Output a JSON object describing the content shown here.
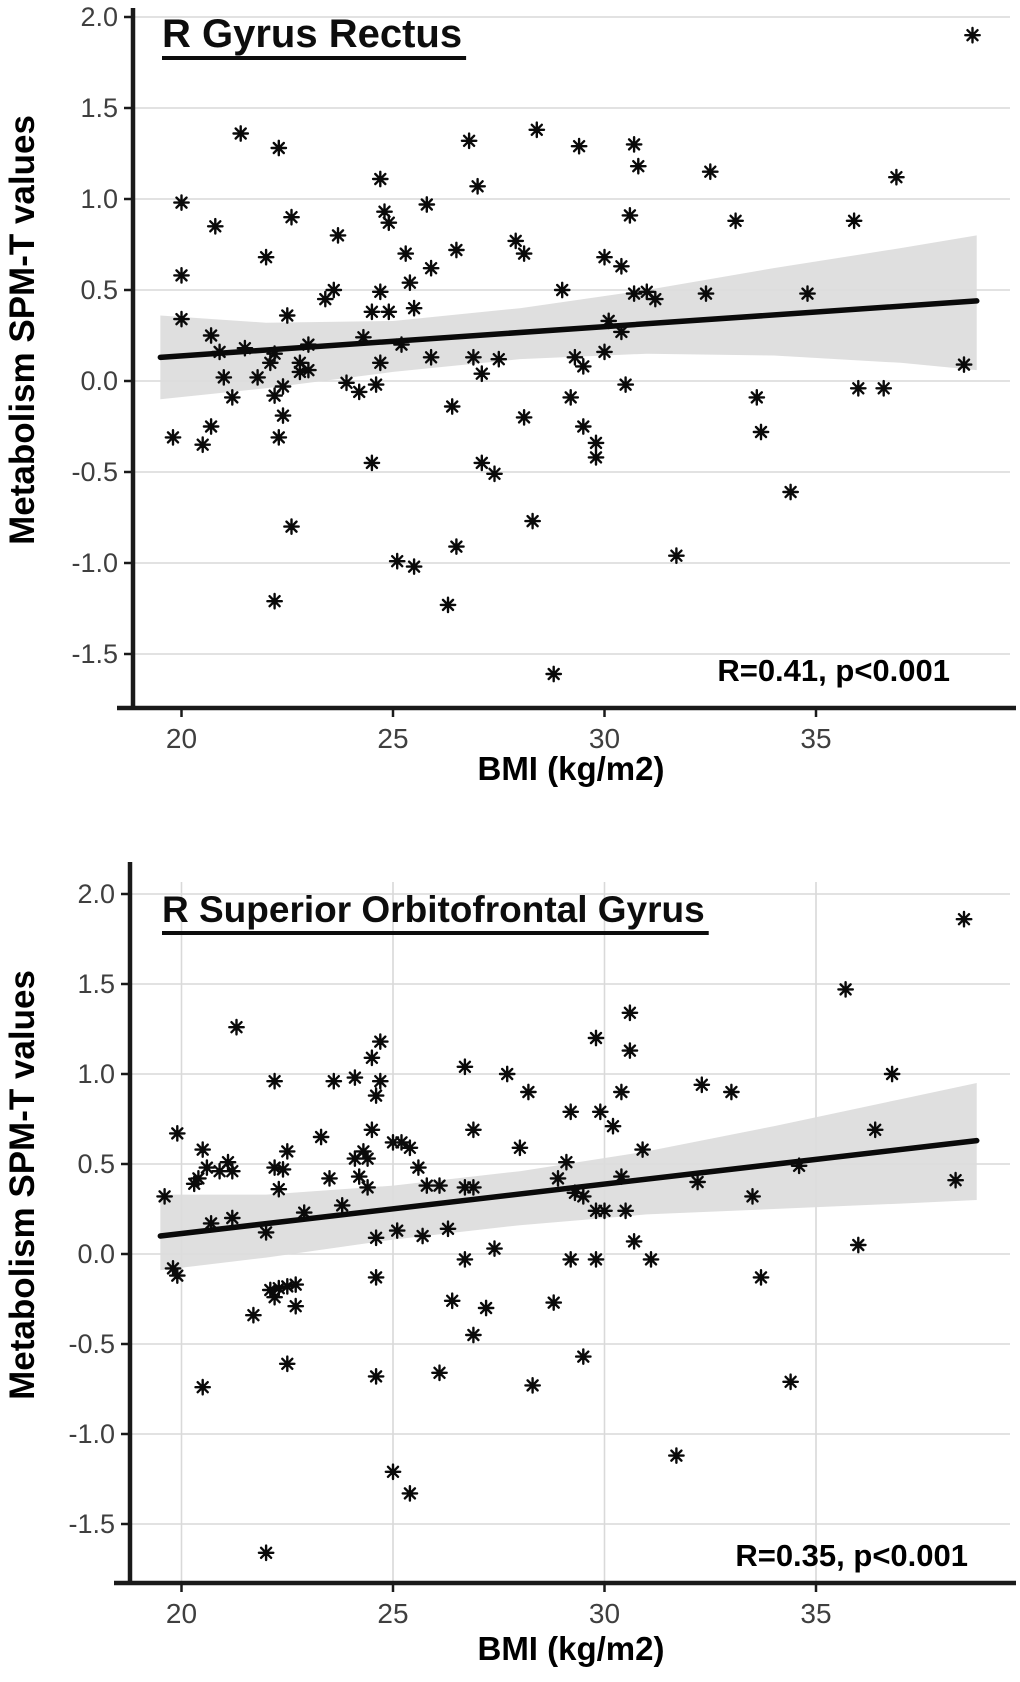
{
  "page": {
    "background": "#ffffff"
  },
  "colors": {
    "point": "#0a0a0a",
    "regression_line": "#0a0a0a",
    "ci_band": "#dcdcdc",
    "grid": "#d9d9d9",
    "axis": "#1a1a1a",
    "tick_label": "#3f3f3f",
    "text": "#000000"
  },
  "chart_data": [
    {
      "type": "scatter",
      "title": "R Gyrus Rectus",
      "annotation": "R=0.41, p<0.001",
      "xlabel": "BMI (kg/m2)",
      "ylabel": "Metabolism SPM-T values",
      "x_ticks": [
        20,
        25,
        30,
        35
      ],
      "y_ticks": [
        2.0,
        1.5,
        1.0,
        0.5,
        0.0,
        -0.5,
        -1.0,
        -1.5
      ],
      "y_tick_labels": [
        "2.0",
        "1.5",
        "1.0",
        "0.5",
        "0.0",
        "-0.5",
        "-1.0",
        "-1.5"
      ],
      "xlim": [
        18.8,
        39.6
      ],
      "ylim": [
        -1.8,
        2.05
      ],
      "grid_vertical": false,
      "legend": "none",
      "marker": "asterisk",
      "regression": {
        "x": [
          19.5,
          38.8
        ],
        "y": [
          0.13,
          0.44
        ]
      },
      "ci_band": {
        "upper": [
          [
            19.5,
            0.36
          ],
          [
            22,
            0.32
          ],
          [
            25,
            0.33
          ],
          [
            28,
            0.4
          ],
          [
            31,
            0.5
          ],
          [
            34,
            0.62
          ],
          [
            37,
            0.73
          ],
          [
            38.8,
            0.8
          ]
        ],
        "lower": [
          [
            19.5,
            -0.1
          ],
          [
            22,
            -0.04
          ],
          [
            25,
            0.05
          ],
          [
            28,
            0.12
          ],
          [
            31,
            0.15
          ],
          [
            34,
            0.14
          ],
          [
            37,
            0.1
          ],
          [
            38.8,
            0.06
          ]
        ]
      },
      "points": [
        [
          20.0,
          0.98
        ],
        [
          21.4,
          1.36
        ],
        [
          22.3,
          1.28
        ],
        [
          20.8,
          0.85
        ],
        [
          22.6,
          0.9
        ],
        [
          22.0,
          0.68
        ],
        [
          20.0,
          0.58
        ],
        [
          23.7,
          0.8
        ],
        [
          24.7,
          1.11
        ],
        [
          24.8,
          0.93
        ],
        [
          24.9,
          0.87
        ],
        [
          25.8,
          0.97
        ],
        [
          26.8,
          1.32
        ],
        [
          27.0,
          1.07
        ],
        [
          25.3,
          0.7
        ],
        [
          25.9,
          0.62
        ],
        [
          26.5,
          0.72
        ],
        [
          25.4,
          0.54
        ],
        [
          23.6,
          0.5
        ],
        [
          23.4,
          0.45
        ],
        [
          24.7,
          0.49
        ],
        [
          24.5,
          0.38
        ],
        [
          24.9,
          0.38
        ],
        [
          25.5,
          0.4
        ],
        [
          20.0,
          0.34
        ],
        [
          22.5,
          0.36
        ],
        [
          20.7,
          0.25
        ],
        [
          20.9,
          0.16
        ],
        [
          21.5,
          0.18
        ],
        [
          22.2,
          0.15
        ],
        [
          23.0,
          0.2
        ],
        [
          24.3,
          0.24
        ],
        [
          25.2,
          0.2
        ],
        [
          22.1,
          0.1
        ],
        [
          22.8,
          0.1
        ],
        [
          22.8,
          0.05
        ],
        [
          23.0,
          0.06
        ],
        [
          24.7,
          0.1
        ],
        [
          25.9,
          0.13
        ],
        [
          26.9,
          0.13
        ],
        [
          27.5,
          0.12
        ],
        [
          27.1,
          0.04
        ],
        [
          21.0,
          0.02
        ],
        [
          21.8,
          0.02
        ],
        [
          22.4,
          -0.03
        ],
        [
          23.9,
          -0.01
        ],
        [
          24.6,
          -0.02
        ],
        [
          24.2,
          -0.06
        ],
        [
          21.2,
          -0.09
        ],
        [
          22.2,
          -0.08
        ],
        [
          22.4,
          -0.19
        ],
        [
          20.7,
          -0.25
        ],
        [
          19.8,
          -0.31
        ],
        [
          20.5,
          -0.35
        ],
        [
          22.3,
          -0.31
        ],
        [
          26.4,
          -0.14
        ],
        [
          24.5,
          -0.45
        ],
        [
          27.1,
          -0.45
        ],
        [
          27.4,
          -0.51
        ],
        [
          22.6,
          -0.8
        ],
        [
          26.5,
          -0.91
        ],
        [
          25.1,
          -0.99
        ],
        [
          25.5,
          -1.02
        ],
        [
          22.2,
          -1.21
        ],
        [
          26.3,
          -1.23
        ],
        [
          38.7,
          1.9
        ],
        [
          28.4,
          1.38
        ],
        [
          29.4,
          1.29
        ],
        [
          30.7,
          1.3
        ],
        [
          30.8,
          1.18
        ],
        [
          32.5,
          1.15
        ],
        [
          36.9,
          1.12
        ],
        [
          30.6,
          0.91
        ],
        [
          33.1,
          0.88
        ],
        [
          35.9,
          0.88
        ],
        [
          27.9,
          0.77
        ],
        [
          28.1,
          0.7
        ],
        [
          30.0,
          0.68
        ],
        [
          30.4,
          0.63
        ],
        [
          29.0,
          0.5
        ],
        [
          30.7,
          0.48
        ],
        [
          31.0,
          0.49
        ],
        [
          31.2,
          0.45
        ],
        [
          32.4,
          0.48
        ],
        [
          34.8,
          0.48
        ],
        [
          30.1,
          0.33
        ],
        [
          30.4,
          0.27
        ],
        [
          29.3,
          0.13
        ],
        [
          29.5,
          0.08
        ],
        [
          30.0,
          0.16
        ],
        [
          38.5,
          0.09
        ],
        [
          30.5,
          -0.02
        ],
        [
          36.0,
          -0.04
        ],
        [
          36.6,
          -0.04
        ],
        [
          29.2,
          -0.09
        ],
        [
          33.6,
          -0.09
        ],
        [
          28.1,
          -0.2
        ],
        [
          29.5,
          -0.25
        ],
        [
          29.8,
          -0.34
        ],
        [
          29.8,
          -0.42
        ],
        [
          33.7,
          -0.28
        ],
        [
          34.4,
          -0.61
        ],
        [
          28.3,
          -0.77
        ],
        [
          31.7,
          -0.96
        ],
        [
          28.8,
          -1.61
        ]
      ]
    },
    {
      "type": "scatter",
      "title": "R Superior Orbitofrontal Gyrus",
      "annotation": "R=0.35, p<0.001",
      "xlabel": "BMI (kg/m2)",
      "ylabel": "Metabolism SPM-T values",
      "x_ticks": [
        20,
        25,
        30,
        35
      ],
      "y_ticks": [
        2.0,
        1.5,
        1.0,
        0.5,
        0.0,
        -0.5,
        -1.0,
        -1.5
      ],
      "y_tick_labels": [
        "2.0",
        "1.5",
        "1.0",
        "0.5",
        "0.0",
        "-0.5",
        "-1.0",
        "-1.5"
      ],
      "xlim": [
        18.8,
        39.6
      ],
      "ylim": [
        -1.85,
        2.05
      ],
      "grid_vertical": true,
      "legend": "none",
      "marker": "asterisk",
      "regression": {
        "x": [
          19.5,
          38.8
        ],
        "y": [
          0.1,
          0.63
        ]
      },
      "ci_band": {
        "upper": [
          [
            19.5,
            0.33
          ],
          [
            22,
            0.33
          ],
          [
            25,
            0.38
          ],
          [
            28,
            0.46
          ],
          [
            31,
            0.57
          ],
          [
            34,
            0.71
          ],
          [
            37,
            0.86
          ],
          [
            38.8,
            0.95
          ]
        ],
        "lower": [
          [
            19.5,
            -0.09
          ],
          [
            22,
            -0.02
          ],
          [
            25,
            0.08
          ],
          [
            28,
            0.16
          ],
          [
            31,
            0.22
          ],
          [
            34,
            0.25
          ],
          [
            37,
            0.28
          ],
          [
            38.8,
            0.3
          ]
        ]
      },
      "points": [
        [
          21.3,
          1.26
        ],
        [
          24.7,
          1.18
        ],
        [
          24.5,
          1.09
        ],
        [
          22.2,
          0.96
        ],
        [
          23.6,
          0.96
        ],
        [
          24.1,
          0.98
        ],
        [
          24.7,
          0.96
        ],
        [
          26.7,
          1.04
        ],
        [
          27.7,
          1.0
        ],
        [
          24.6,
          0.88
        ],
        [
          19.9,
          0.67
        ],
        [
          24.5,
          0.69
        ],
        [
          23.3,
          0.65
        ],
        [
          25.0,
          0.62
        ],
        [
          25.2,
          0.62
        ],
        [
          26.9,
          0.69
        ],
        [
          20.5,
          0.58
        ],
        [
          22.5,
          0.57
        ],
        [
          24.3,
          0.57
        ],
        [
          25.4,
          0.59
        ],
        [
          21.1,
          0.51
        ],
        [
          24.1,
          0.53
        ],
        [
          24.4,
          0.53
        ],
        [
          20.6,
          0.48
        ],
        [
          20.9,
          0.46
        ],
        [
          21.2,
          0.46
        ],
        [
          22.2,
          0.48
        ],
        [
          22.4,
          0.47
        ],
        [
          25.6,
          0.48
        ],
        [
          20.4,
          0.42
        ],
        [
          24.2,
          0.43
        ],
        [
          23.5,
          0.42
        ],
        [
          22.3,
          0.36
        ],
        [
          24.4,
          0.37
        ],
        [
          19.6,
          0.32
        ],
        [
          25.8,
          0.38
        ],
        [
          26.1,
          0.38
        ],
        [
          26.7,
          0.37
        ],
        [
          26.9,
          0.37
        ],
        [
          38.5,
          1.86
        ],
        [
          35.7,
          1.47
        ],
        [
          30.6,
          1.34
        ],
        [
          29.8,
          1.2
        ],
        [
          30.6,
          1.13
        ],
        [
          36.8,
          1.0
        ],
        [
          32.3,
          0.94
        ],
        [
          33.0,
          0.9
        ],
        [
          28.2,
          0.9
        ],
        [
          30.4,
          0.9
        ],
        [
          29.2,
          0.79
        ],
        [
          29.9,
          0.79
        ],
        [
          30.2,
          0.71
        ],
        [
          36.4,
          0.69
        ],
        [
          28.0,
          0.59
        ],
        [
          30.9,
          0.58
        ],
        [
          29.1,
          0.51
        ],
        [
          34.6,
          0.49
        ],
        [
          38.3,
          0.41
        ],
        [
          28.9,
          0.42
        ],
        [
          30.4,
          0.43
        ],
        [
          32.2,
          0.4
        ],
        [
          29.3,
          0.34
        ],
        [
          33.5,
          0.32
        ],
        [
          20.3,
          0.39
        ],
        [
          23.8,
          0.27
        ],
        [
          20.7,
          0.17
        ],
        [
          21.2,
          0.2
        ],
        [
          22.9,
          0.23
        ],
        [
          22.0,
          0.12
        ],
        [
          24.6,
          0.09
        ],
        [
          25.1,
          0.13
        ],
        [
          25.7,
          0.1
        ],
        [
          26.3,
          0.14
        ],
        [
          27.4,
          0.03
        ],
        [
          26.7,
          -0.03
        ],
        [
          19.8,
          -0.08
        ],
        [
          19.9,
          -0.12
        ],
        [
          24.6,
          -0.13
        ],
        [
          22.1,
          -0.2
        ],
        [
          22.3,
          -0.19
        ],
        [
          22.5,
          -0.18
        ],
        [
          22.7,
          -0.17
        ],
        [
          22.2,
          -0.24
        ],
        [
          22.7,
          -0.29
        ],
        [
          21.7,
          -0.34
        ],
        [
          26.4,
          -0.26
        ],
        [
          27.2,
          -0.3
        ],
        [
          26.9,
          -0.45
        ],
        [
          22.5,
          -0.61
        ],
        [
          24.6,
          -0.68
        ],
        [
          26.1,
          -0.66
        ],
        [
          20.5,
          -0.74
        ],
        [
          25.0,
          -1.21
        ],
        [
          25.4,
          -1.33
        ],
        [
          22.0,
          -1.66
        ],
        [
          29.5,
          0.32
        ],
        [
          29.8,
          0.24
        ],
        [
          30.0,
          0.24
        ],
        [
          30.5,
          0.24
        ],
        [
          30.7,
          0.07
        ],
        [
          29.2,
          -0.03
        ],
        [
          29.8,
          -0.03
        ],
        [
          31.1,
          -0.03
        ],
        [
          36.0,
          0.05
        ],
        [
          33.7,
          -0.13
        ],
        [
          28.8,
          -0.27
        ],
        [
          29.5,
          -0.57
        ],
        [
          28.3,
          -0.73
        ],
        [
          34.4,
          -0.71
        ],
        [
          31.7,
          -1.12
        ]
      ]
    }
  ]
}
